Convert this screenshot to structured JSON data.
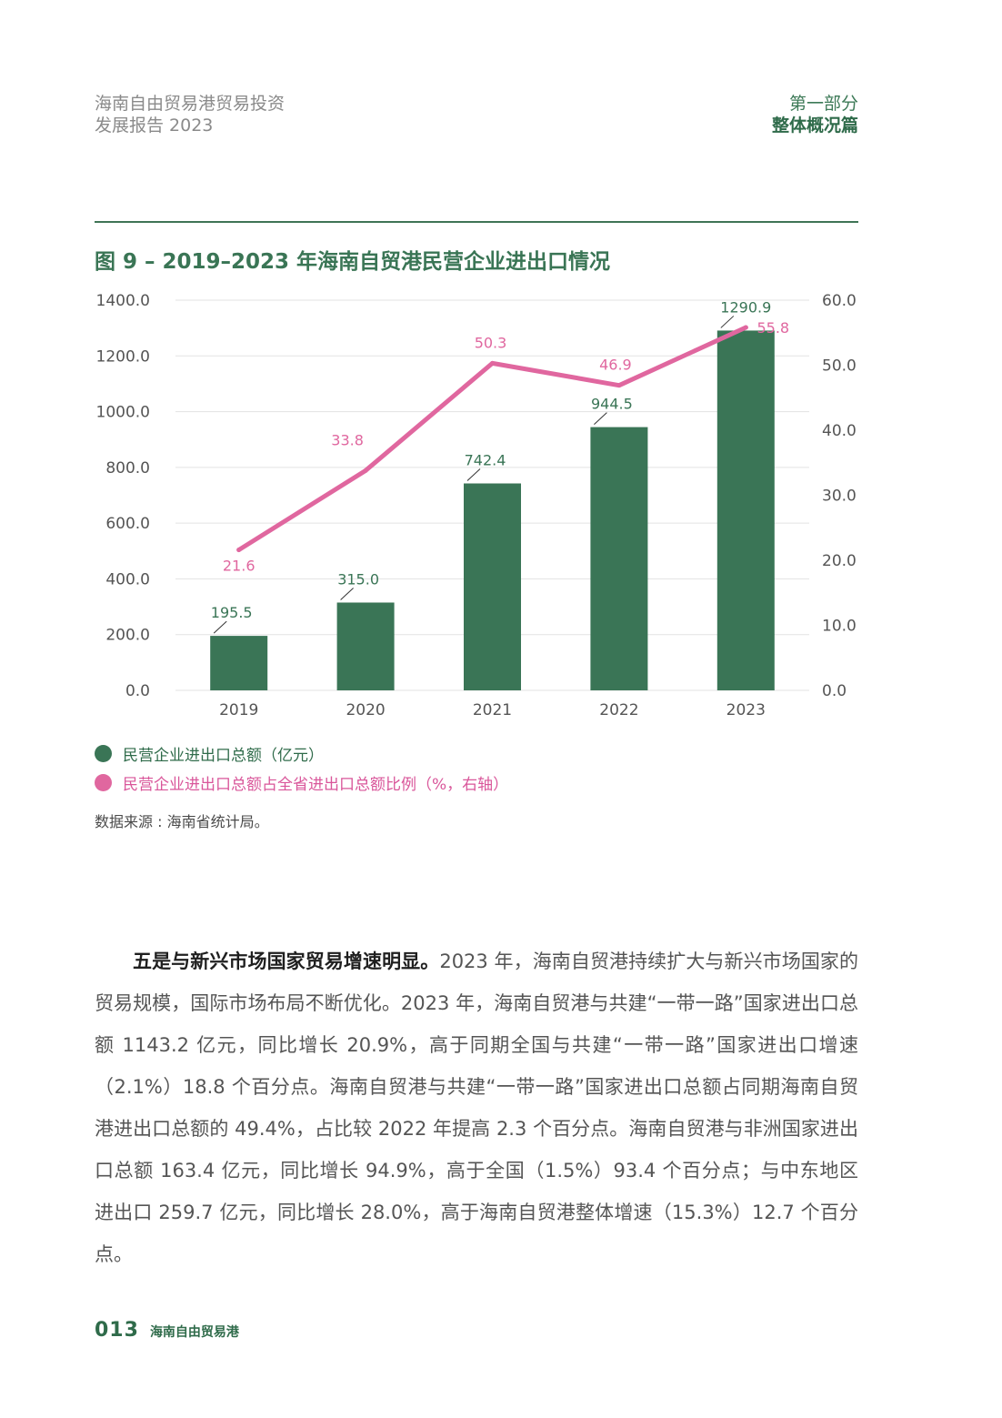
{
  "header": {
    "report_line1": "海南自由贸易港贸易投资",
    "report_line2": "发展报告 2023",
    "part_line1": "第一部分",
    "part_line2": "整体概况篇"
  },
  "figure": {
    "title": "图 9 – 2019–2023 年海南自贸港民营企业进出口情况",
    "source": "数据来源 : 海南省统计局。"
  },
  "chart_data": {
    "type": "bar+line",
    "categories": [
      "2019",
      "2020",
      "2021",
      "2022",
      "2023"
    ],
    "series": [
      {
        "name": "民营企业进出口总额（亿元）",
        "type": "bar",
        "axis": "left",
        "values": [
          195.5,
          315.0,
          742.4,
          944.5,
          1290.9
        ],
        "labels": [
          "195.5",
          "315.0",
          "742.4",
          "944.5",
          "1290.9"
        ],
        "color": "#3a7556"
      },
      {
        "name": "民营企业进出口总额占全省进出口总额比例（%，右轴）",
        "type": "line",
        "axis": "right",
        "values": [
          21.6,
          33.8,
          50.3,
          46.9,
          55.8
        ],
        "labels": [
          "21.6",
          "33.8",
          "50.3",
          "46.9",
          "55.8"
        ],
        "color": "#e0679f"
      }
    ],
    "y_left": {
      "min": 0,
      "max": 1400,
      "ticks": [
        "0.0",
        "200.0",
        "400.0",
        "600.0",
        "800.0",
        "1000.0",
        "1200.0",
        "1400.0"
      ]
    },
    "y_right": {
      "min": 0,
      "max": 60,
      "ticks": [
        "0.0",
        "10.0",
        "20.0",
        "30.0",
        "40.0",
        "50.0",
        "60.0"
      ]
    },
    "grid": true,
    "legend_position": "bottom-left"
  },
  "body": {
    "lead": "五是与新兴市场国家贸易增速明显。",
    "text": "2023 年，海南自贸港持续扩大与新兴市场国家的贸易规模，国际市场布局不断优化。2023 年，海南自贸港与共建“一带一路”国家进出口总额 1143.2 亿元，同比增长 20.9%，高于同期全国与共建“一带一路”国家进出口增速（2.1%）18.8 个百分点。海南自贸港与共建“一带一路”国家进出口总额占同期海南自贸港进出口总额的 49.4%，占比较 2022 年提高 2.3 个百分点。海南自贸港与非洲国家进出口总额 163.4 亿元，同比增长 94.9%，高于全国（1.5%）93.4 个百分点；与中东地区进出口 259.7 亿元，同比增长 28.0%，高于海南自贸港整体增速（15.3%）12.7 个百分点。"
  },
  "footer": {
    "page_number": "013",
    "name": "海南自由贸易港"
  }
}
